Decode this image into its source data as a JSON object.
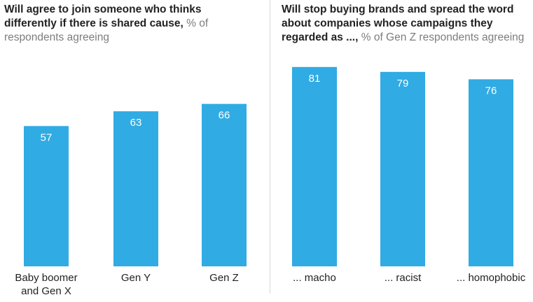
{
  "chart_data": [
    {
      "type": "bar",
      "title": "Will agree to join someone who thinks differently if there is shared cause,",
      "subtitle": "% of respondents agreeing",
      "categories": [
        "Baby boomer\nand Gen X",
        "Gen Y",
        "Gen Z"
      ],
      "values": [
        57,
        63,
        66
      ],
      "color": "#31ABE3",
      "ylim": [
        0,
        100
      ],
      "grid": false
    },
    {
      "type": "bar",
      "title": "Will stop buying brands and spread the word about companies whose campaigns they regarded as ...,",
      "subtitle": "% of Gen Z respondents agreeing",
      "categories": [
        "... macho",
        "... racist",
        "... homophobic"
      ],
      "values": [
        81,
        79,
        76
      ],
      "color": "#31ABE3",
      "ylim": [
        0,
        100
      ],
      "grid": false
    }
  ]
}
